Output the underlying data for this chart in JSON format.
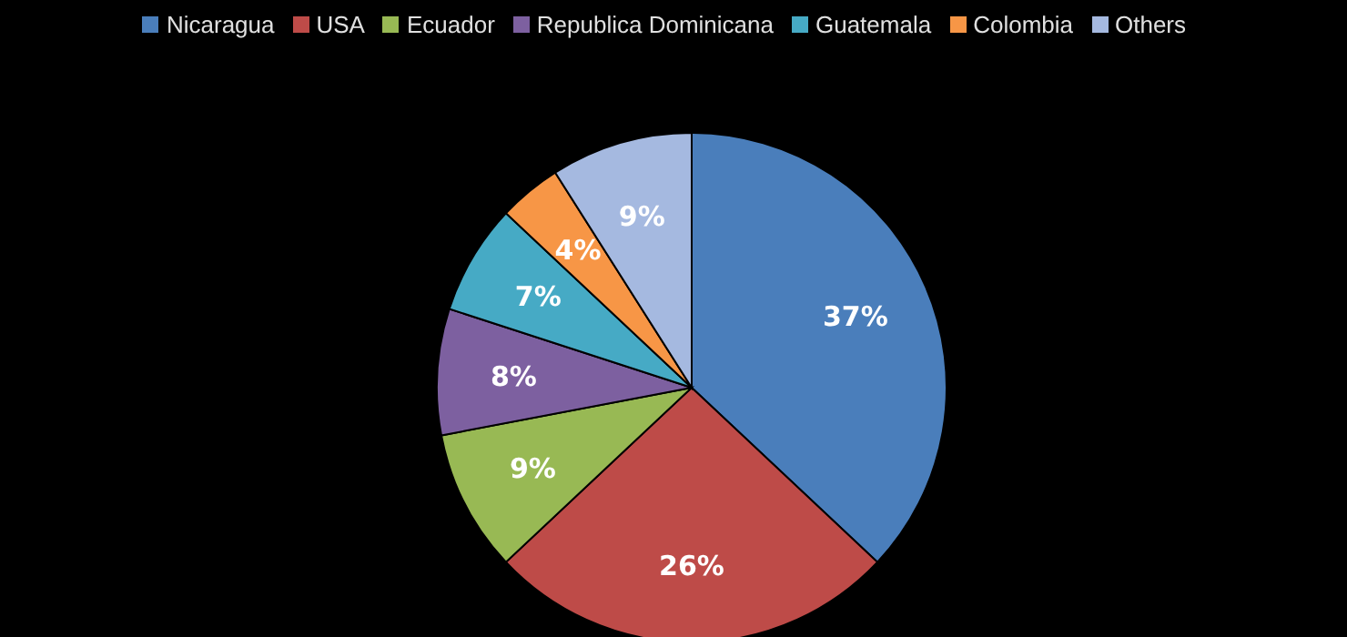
{
  "chart_data": {
    "type": "pie",
    "categories": [
      "Nicaragua",
      "USA",
      "Ecuador",
      "Republica Dominicana",
      "Guatemala",
      "Colombia",
      "Others"
    ],
    "values": [
      37,
      26,
      9,
      8,
      7,
      4,
      9
    ],
    "colors": [
      "#4a7ebb",
      "#be4b48",
      "#98b954",
      "#7d60a0",
      "#46aac5",
      "#f79646",
      "#a5b9e0"
    ],
    "value_labels": [
      "37%",
      "26%",
      "9%",
      "8%",
      "7%",
      "4%",
      "9%"
    ],
    "legend": "top"
  }
}
